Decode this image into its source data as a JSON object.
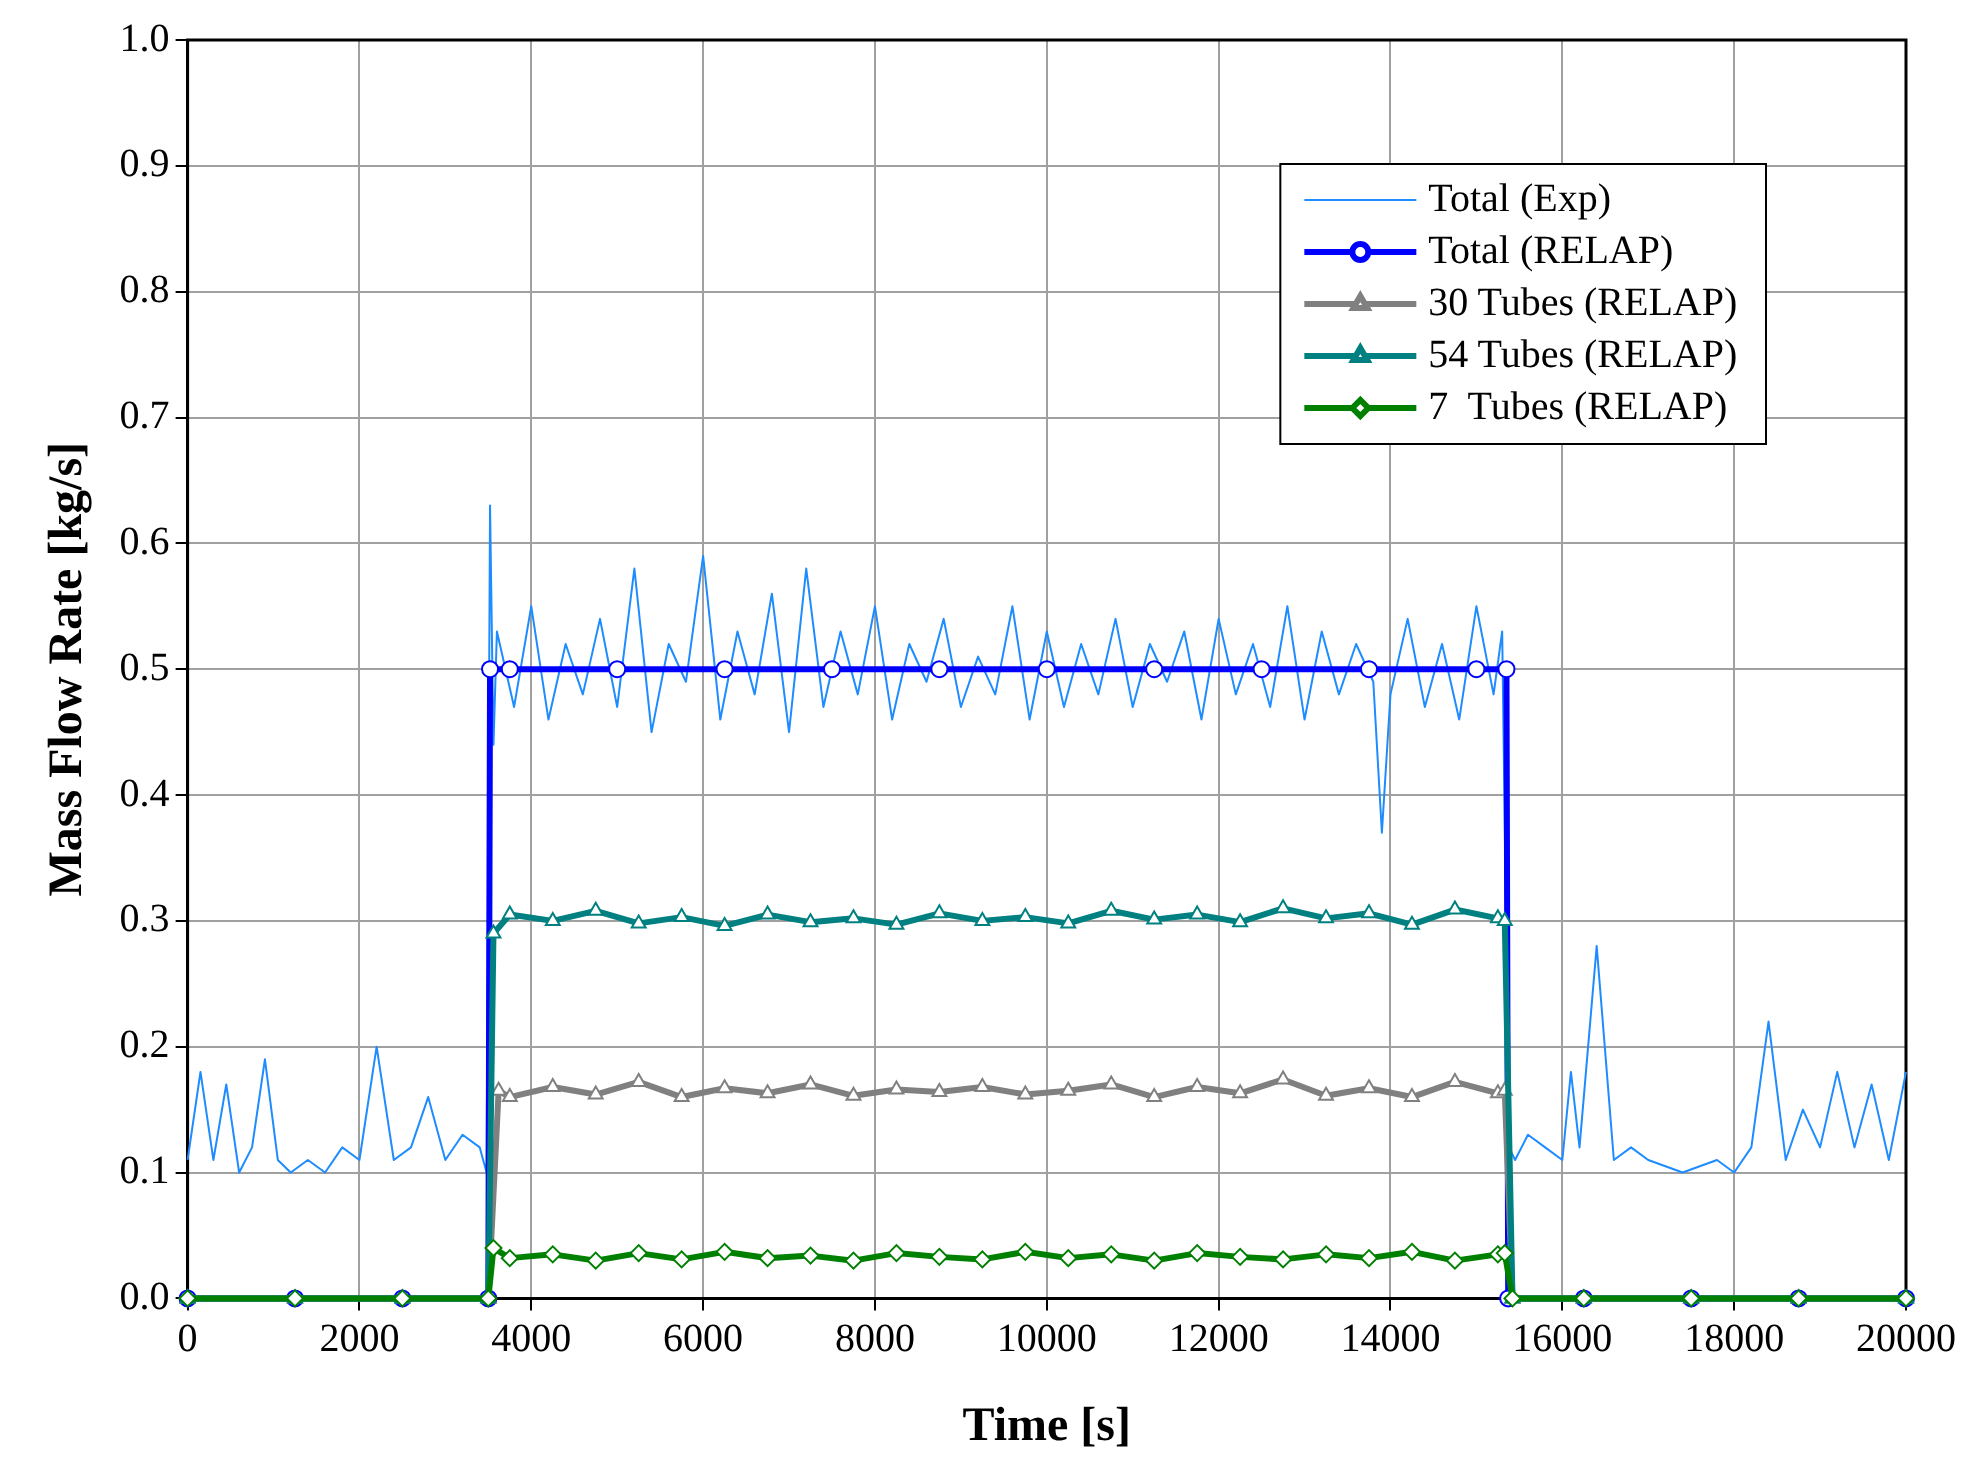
{
  "chart_data": {
    "type": "line",
    "xlabel": "Time [s]",
    "ylabel": "Mass Flow Rate [kg/s]",
    "xlim": [
      0,
      20000
    ],
    "xticks": [
      0,
      2000,
      4000,
      6000,
      8000,
      10000,
      12000,
      14000,
      16000,
      18000,
      20000
    ],
    "ylim": [
      0,
      1.0
    ],
    "yticks": [
      {
        "value": 0,
        "label": "0.0"
      },
      0.1,
      0.2,
      0.3,
      0.4,
      0.5,
      0.6,
      0.7,
      0.8,
      0.9,
      {
        "value": 1.0,
        "label": "1.0"
      }
    ],
    "grid": true,
    "legend": "top right",
    "line_style": "solid",
    "series": [
      {
        "name": "Total (Exp)",
        "color": "#1e8cff",
        "marker": "none",
        "x": [
          0,
          150,
          300,
          450,
          600,
          750,
          900,
          1050,
          1200,
          1400,
          1600,
          1800,
          2000,
          2200,
          2400,
          2600,
          2800,
          3000,
          3200,
          3400,
          3480,
          3520,
          3560,
          3600,
          3800,
          4000,
          4200,
          4400,
          4600,
          4800,
          5000,
          5200,
          5400,
          5600,
          5800,
          6000,
          6200,
          6400,
          6600,
          6800,
          7000,
          7200,
          7400,
          7600,
          7800,
          8000,
          8200,
          8400,
          8600,
          8800,
          9000,
          9200,
          9400,
          9600,
          9800,
          10000,
          10200,
          10400,
          10600,
          10800,
          11000,
          11200,
          11400,
          11600,
          11800,
          12000,
          12200,
          12400,
          12600,
          12800,
          13000,
          13200,
          13400,
          13600,
          13800,
          13900,
          14000,
          14200,
          14400,
          14600,
          14800,
          15000,
          15200,
          15300,
          15380,
          15450,
          15600,
          15800,
          16000,
          16100,
          16200,
          16400,
          16600,
          16800,
          17000,
          17400,
          17800,
          18000,
          18200,
          18400,
          18600,
          18800,
          19000,
          19200,
          19400,
          19600,
          19800,
          20000
        ],
        "values": [
          0.11,
          0.18,
          0.11,
          0.17,
          0.1,
          0.12,
          0.19,
          0.11,
          0.1,
          0.11,
          0.1,
          0.12,
          0.11,
          0.2,
          0.11,
          0.12,
          0.16,
          0.11,
          0.13,
          0.12,
          0.1,
          0.63,
          0.44,
          0.53,
          0.47,
          0.55,
          0.46,
          0.52,
          0.48,
          0.54,
          0.47,
          0.58,
          0.45,
          0.52,
          0.49,
          0.59,
          0.46,
          0.53,
          0.48,
          0.56,
          0.45,
          0.58,
          0.47,
          0.53,
          0.48,
          0.55,
          0.46,
          0.52,
          0.49,
          0.54,
          0.47,
          0.51,
          0.48,
          0.55,
          0.46,
          0.53,
          0.47,
          0.52,
          0.48,
          0.54,
          0.47,
          0.52,
          0.49,
          0.53,
          0.46,
          0.54,
          0.48,
          0.52,
          0.47,
          0.55,
          0.46,
          0.53,
          0.48,
          0.52,
          0.49,
          0.37,
          0.48,
          0.54,
          0.47,
          0.52,
          0.46,
          0.55,
          0.48,
          0.53,
          0.12,
          0.11,
          0.13,
          0.12,
          0.11,
          0.18,
          0.12,
          0.28,
          0.11,
          0.12,
          0.11,
          0.1,
          0.11,
          0.1,
          0.12,
          0.22,
          0.11,
          0.15,
          0.12,
          0.18,
          0.12,
          0.17,
          0.11,
          0.18
        ]
      },
      {
        "name": "Total (RELAP)",
        "color": "#0000ff",
        "marker": "circle",
        "x": [
          0,
          1250,
          2500,
          3500,
          3520,
          3750,
          5000,
          6250,
          7500,
          8750,
          10000,
          11250,
          12500,
          13750,
          15000,
          15350,
          15370,
          16250,
          17500,
          18750,
          20000
        ],
        "values": [
          0,
          0,
          0,
          0,
          0.5,
          0.5,
          0.5,
          0.5,
          0.5,
          0.5,
          0.5,
          0.5,
          0.5,
          0.5,
          0.5,
          0.5,
          0,
          0,
          0,
          0,
          0
        ]
      },
      {
        "name": "30 Tubes (RELAP)",
        "color": "#808080",
        "marker": "triangle",
        "x": [
          0,
          1250,
          2500,
          3500,
          3620,
          3750,
          4250,
          4750,
          5250,
          5750,
          6250,
          6750,
          7250,
          7750,
          8250,
          8750,
          9250,
          9750,
          10250,
          10750,
          11250,
          11750,
          12250,
          12750,
          13250,
          13750,
          14250,
          14750,
          15250,
          15330,
          15420,
          16250,
          17500,
          18750,
          20000
        ],
        "values": [
          0,
          0,
          0,
          0,
          0.165,
          0.16,
          0.168,
          0.162,
          0.172,
          0.16,
          0.167,
          0.163,
          0.17,
          0.161,
          0.166,
          0.164,
          0.168,
          0.162,
          0.165,
          0.17,
          0.16,
          0.168,
          0.163,
          0.174,
          0.161,
          0.167,
          0.16,
          0.172,
          0.163,
          0.165,
          0,
          0,
          0,
          0,
          0
        ]
      },
      {
        "name": "54 Tubes (RELAP)",
        "color": "#008080",
        "marker": "triangle",
        "x": [
          0,
          1250,
          2500,
          3500,
          3560,
          3750,
          4250,
          4750,
          5250,
          5750,
          6250,
          6750,
          7250,
          7750,
          8250,
          8750,
          9250,
          9750,
          10250,
          10750,
          11250,
          11750,
          12250,
          12750,
          13250,
          13750,
          14250,
          14750,
          15250,
          15330,
          15420,
          16250,
          17500,
          18750,
          20000
        ],
        "values": [
          0,
          0,
          0,
          0,
          0.29,
          0.305,
          0.3,
          0.308,
          0.298,
          0.303,
          0.296,
          0.305,
          0.299,
          0.302,
          0.297,
          0.306,
          0.3,
          0.303,
          0.298,
          0.308,
          0.301,
          0.305,
          0.299,
          0.31,
          0.302,
          0.306,
          0.297,
          0.309,
          0.302,
          0.3,
          0,
          0,
          0,
          0,
          0
        ]
      },
      {
        "name": "7  Tubes (RELAP)",
        "color": "#008000",
        "marker": "diamond",
        "x": [
          0,
          1250,
          2500,
          3500,
          3560,
          3750,
          4250,
          4750,
          5250,
          5750,
          6250,
          6750,
          7250,
          7750,
          8250,
          8750,
          9250,
          9750,
          10250,
          10750,
          11250,
          11750,
          12250,
          12750,
          13250,
          13750,
          14250,
          14750,
          15250,
          15330,
          15420,
          16250,
          17500,
          18750,
          20000
        ],
        "values": [
          0,
          0,
          0,
          0,
          0.04,
          0.032,
          0.035,
          0.03,
          0.036,
          0.031,
          0.037,
          0.032,
          0.034,
          0.03,
          0.036,
          0.033,
          0.031,
          0.037,
          0.032,
          0.035,
          0.03,
          0.036,
          0.033,
          0.031,
          0.035,
          0.032,
          0.037,
          0.03,
          0.035,
          0.036,
          0,
          0,
          0,
          0,
          0
        ]
      }
    ]
  }
}
